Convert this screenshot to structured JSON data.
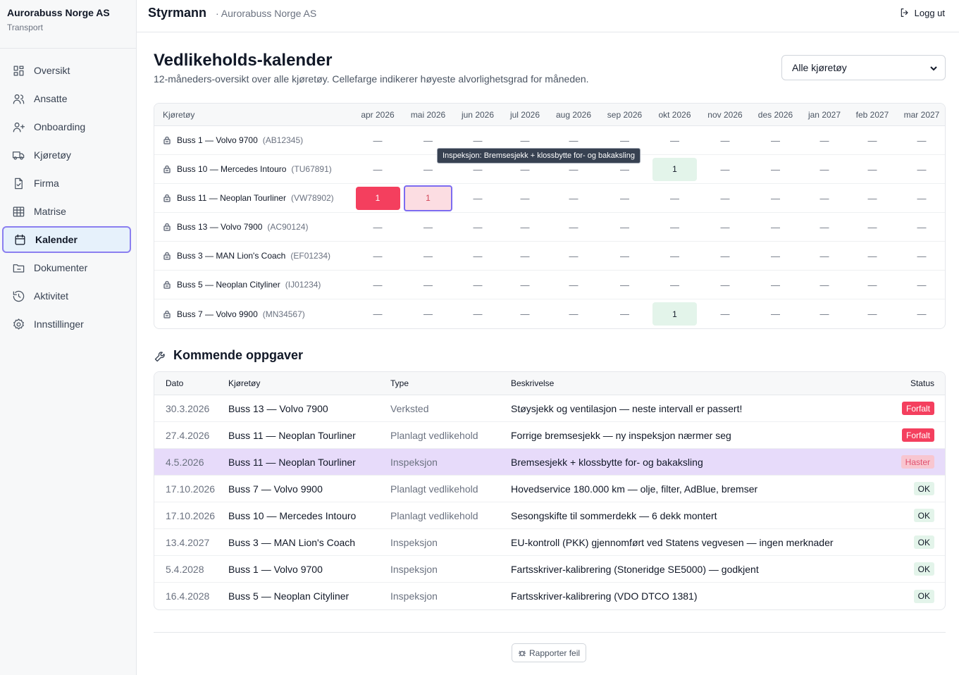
{
  "brand": {
    "name": "Aurorabuss Norge AS",
    "sub": "Transport"
  },
  "sidebar": {
    "items": [
      {
        "label": "Oversikt",
        "icon": "grid-icon"
      },
      {
        "label": "Ansatte",
        "icon": "users-icon"
      },
      {
        "label": "Onboarding",
        "icon": "user-plus-icon"
      },
      {
        "label": "Kjøretøy",
        "icon": "truck-icon"
      },
      {
        "label": "Firma",
        "icon": "file-check-icon"
      },
      {
        "label": "Matrise",
        "icon": "table-icon"
      },
      {
        "label": "Kalender",
        "icon": "calendar-icon"
      },
      {
        "label": "Dokumenter",
        "icon": "folder-icon"
      },
      {
        "label": "Aktivitet",
        "icon": "history-icon"
      },
      {
        "label": "Innstillinger",
        "icon": "gear-icon"
      }
    ],
    "active": "Kalender"
  },
  "topbar": {
    "title": "Styrmann",
    "sub": "· Aurorabuss Norge AS",
    "logout": "Logg ut"
  },
  "page": {
    "title": "Vedlikeholds-kalender",
    "desc": "12-måneders-oversikt over alle kjøretøy. Cellefarge indikerer høyeste alvorlighetsgrad for måneden.",
    "select_value": "Alle kjøretøy"
  },
  "calendar": {
    "vehicle_header": "Kjøretøy",
    "months": [
      "apr 2026",
      "mai 2026",
      "jun 2026",
      "jul 2026",
      "aug 2026",
      "sep 2026",
      "okt 2026",
      "nov 2026",
      "des 2026",
      "jan 2027",
      "feb 2027",
      "mar 2027"
    ],
    "empty_symbol": "—",
    "rows": [
      {
        "name": "Buss 1 — Volvo 9700",
        "reg": "(AB12345)",
        "cells": [
          null,
          null,
          null,
          null,
          null,
          null,
          null,
          null,
          null,
          null,
          null,
          null
        ]
      },
      {
        "name": "Buss 10 — Mercedes Intouro",
        "reg": "(TU67891)",
        "cells": [
          null,
          null,
          null,
          null,
          null,
          null,
          {
            "count": "1",
            "severity": "ok"
          },
          null,
          null,
          null,
          null,
          null
        ]
      },
      {
        "name": "Buss 11 — Neoplan Tourliner",
        "reg": "(VW78902)",
        "cells": [
          {
            "count": "1",
            "severity": "critical"
          },
          {
            "count": "1",
            "severity": "urgent"
          },
          null,
          null,
          null,
          null,
          null,
          null,
          null,
          null,
          null,
          null
        ]
      },
      {
        "name": "Buss 13 — Volvo 7900",
        "reg": "(AC90124)",
        "cells": [
          null,
          null,
          null,
          null,
          null,
          null,
          null,
          null,
          null,
          null,
          null,
          null
        ]
      },
      {
        "name": "Buss 3 — MAN Lion's Coach",
        "reg": "(EF01234)",
        "cells": [
          null,
          null,
          null,
          null,
          null,
          null,
          null,
          null,
          null,
          null,
          null,
          null
        ]
      },
      {
        "name": "Buss 5 — Neoplan Cityliner",
        "reg": "(IJ01234)",
        "cells": [
          null,
          null,
          null,
          null,
          null,
          null,
          null,
          null,
          null,
          null,
          null,
          null
        ]
      },
      {
        "name": "Buss 7 — Volvo 9900",
        "reg": "(MN34567)",
        "cells": [
          null,
          null,
          null,
          null,
          null,
          null,
          {
            "count": "1",
            "severity": "ok"
          },
          null,
          null,
          null,
          null,
          null
        ]
      }
    ],
    "tooltip": "Inspeksjon: Bremsesjekk + klossbytte for- og bakaksling"
  },
  "tasks": {
    "title": "Kommende oppgaver",
    "headers": {
      "date": "Dato",
      "vehicle": "Kjøretøy",
      "type": "Type",
      "desc": "Beskrivelse",
      "status": "Status"
    },
    "rows": [
      {
        "date": "30.3.2026",
        "vehicle": "Buss 13 — Volvo 7900",
        "type": "Verksted",
        "desc": "Støysjekk og ventilasjon — neste intervall er passert!",
        "status": "Forfalt",
        "kind": "forfalt"
      },
      {
        "date": "27.4.2026",
        "vehicle": "Buss 11 — Neoplan Tourliner",
        "type": "Planlagt vedlikehold",
        "desc": "Forrige bremsesjekk — ny inspeksjon nærmer seg",
        "status": "Forfalt",
        "kind": "forfalt"
      },
      {
        "date": "4.5.2026",
        "vehicle": "Buss 11 — Neoplan Tourliner",
        "type": "Inspeksjon",
        "desc": "Bremsesjekk + klossbytte for- og bakaksling",
        "status": "Haster",
        "kind": "haster",
        "highlight": true
      },
      {
        "date": "17.10.2026",
        "vehicle": "Buss 7 — Volvo 9900",
        "type": "Planlagt vedlikehold",
        "desc": "Hovedservice 180.000 km — olje, filter, AdBlue, bremser",
        "status": "OK",
        "kind": "ok"
      },
      {
        "date": "17.10.2026",
        "vehicle": "Buss 10 — Mercedes Intouro",
        "type": "Planlagt vedlikehold",
        "desc": "Sesongskifte til sommerdekk — 6 dekk montert",
        "status": "OK",
        "kind": "ok"
      },
      {
        "date": "13.4.2027",
        "vehicle": "Buss 3 — MAN Lion's Coach",
        "type": "Inspeksjon",
        "desc": "EU-kontroll (PKK) gjennomført ved Statens vegvesen — ingen merknader",
        "status": "OK",
        "kind": "ok"
      },
      {
        "date": "5.4.2028",
        "vehicle": "Buss 1 — Volvo 9700",
        "type": "Inspeksjon",
        "desc": "Fartsskriver-kalibrering (Stoneridge SE5000) — godkjent",
        "status": "OK",
        "kind": "ok"
      },
      {
        "date": "16.4.2028",
        "vehicle": "Buss 5 — Neoplan Cityliner",
        "type": "Inspeksjon",
        "desc": "Fartsskriver-kalibrering (VDO DTCO 1381)",
        "status": "OK",
        "kind": "ok"
      }
    ]
  },
  "footer": {
    "report": "Rapporter feil"
  },
  "colors": {
    "critical": "#f43f5e",
    "urgent": "#fcdde2",
    "ok": "#e3f4ea",
    "active_border": "#8b7ff0",
    "highlight_row": "#e7dbfa"
  }
}
